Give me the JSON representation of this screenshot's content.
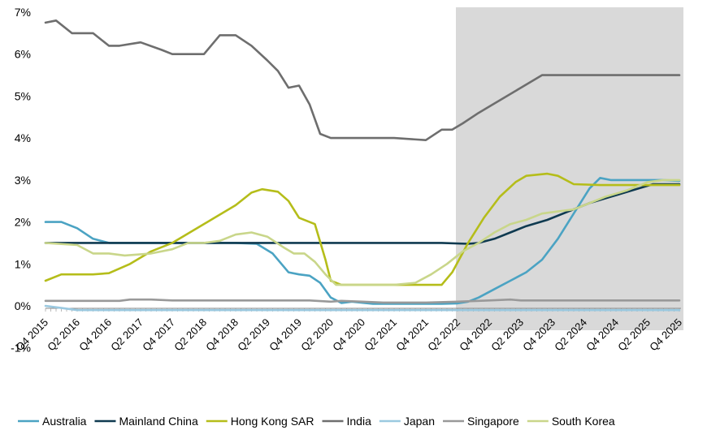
{
  "chart_data": {
    "type": "line",
    "title": "",
    "xlabel": "",
    "ylabel": "",
    "ylim": [
      -1,
      7
    ],
    "y_tick_labels": [
      "-1%",
      "0%",
      "1%",
      "2%",
      "3%",
      "4%",
      "5%",
      "6%",
      "7%"
    ],
    "x_tick_labels": [
      "Q4 2015",
      "Q2 2016",
      "Q4 2016",
      "Q2 2017",
      "Q4 2017",
      "Q2 2018",
      "Q4 2018",
      "Q2 2019",
      "Q4 2019",
      "Q2 2020",
      "Q4 2020",
      "Q2 2021",
      "Q4 2021",
      "Q2 2022",
      "Q4 2022",
      "Q2 2023",
      "Q4 2023",
      "Q2 2024",
      "Q4 2024",
      "Q2 2025",
      "Q4 2025"
    ],
    "x_tick_months": [
      0,
      6,
      12,
      18,
      24,
      30,
      36,
      42,
      48,
      54,
      60,
      66,
      72,
      78,
      84,
      90,
      96,
      102,
      108,
      114,
      120
    ],
    "shaded_region": {
      "from": "Q2 2022",
      "to": "Q4 2025",
      "color": "#d9d9d9"
    },
    "grid": false,
    "legend_position": "bottom",
    "series": [
      {
        "name": "Australia",
        "color": "#4ba3c3",
        "points": [
          [
            0,
            2.0
          ],
          [
            3,
            2.0
          ],
          [
            6,
            1.85
          ],
          [
            9,
            1.6
          ],
          [
            12,
            1.5
          ],
          [
            24,
            1.5
          ],
          [
            36,
            1.5
          ],
          [
            40,
            1.48
          ],
          [
            43,
            1.25
          ],
          [
            46,
            0.8
          ],
          [
            48,
            0.75
          ],
          [
            50,
            0.72
          ],
          [
            52,
            0.55
          ],
          [
            54,
            0.2
          ],
          [
            56,
            0.07
          ],
          [
            58,
            0.1
          ],
          [
            62,
            0.05
          ],
          [
            75,
            0.05
          ],
          [
            78,
            0.06
          ],
          [
            80,
            0.1
          ],
          [
            82,
            0.2
          ],
          [
            85,
            0.4
          ],
          [
            88,
            0.6
          ],
          [
            91,
            0.8
          ],
          [
            94,
            1.1
          ],
          [
            97,
            1.6
          ],
          [
            100,
            2.2
          ],
          [
            103,
            2.8
          ],
          [
            105,
            3.05
          ],
          [
            107,
            3.0
          ],
          [
            110,
            3.0
          ],
          [
            117,
            3.0
          ],
          [
            120,
            2.98
          ]
        ]
      },
      {
        "name": "Mainland China",
        "color": "#0f3a50",
        "points": [
          [
            0,
            1.5
          ],
          [
            30,
            1.5
          ],
          [
            60,
            1.5
          ],
          [
            75,
            1.5
          ],
          [
            80,
            1.48
          ],
          [
            82,
            1.5
          ],
          [
            85,
            1.6
          ],
          [
            88,
            1.75
          ],
          [
            91,
            1.9
          ],
          [
            95,
            2.05
          ],
          [
            99,
            2.25
          ],
          [
            103,
            2.45
          ],
          [
            107,
            2.6
          ],
          [
            111,
            2.75
          ],
          [
            115,
            2.9
          ],
          [
            120,
            2.9
          ]
        ]
      },
      {
        "name": "Hong Kong SAR",
        "color": "#b5bd1a",
        "points": [
          [
            0,
            0.6
          ],
          [
            3,
            0.75
          ],
          [
            9,
            0.75
          ],
          [
            12,
            0.78
          ],
          [
            16,
            1.0
          ],
          [
            20,
            1.3
          ],
          [
            24,
            1.5
          ],
          [
            28,
            1.8
          ],
          [
            32,
            2.1
          ],
          [
            36,
            2.4
          ],
          [
            39,
            2.7
          ],
          [
            41,
            2.78
          ],
          [
            44,
            2.72
          ],
          [
            46,
            2.5
          ],
          [
            48,
            2.1
          ],
          [
            51,
            1.95
          ],
          [
            53,
            1.1
          ],
          [
            54,
            0.6
          ],
          [
            56,
            0.5
          ],
          [
            72,
            0.5
          ],
          [
            75,
            0.5
          ],
          [
            77,
            0.8
          ],
          [
            80,
            1.5
          ],
          [
            83,
            2.1
          ],
          [
            86,
            2.6
          ],
          [
            89,
            2.95
          ],
          [
            91,
            3.1
          ],
          [
            95,
            3.15
          ],
          [
            97,
            3.1
          ],
          [
            100,
            2.9
          ],
          [
            105,
            2.88
          ],
          [
            110,
            2.88
          ],
          [
            115,
            2.88
          ],
          [
            120,
            2.88
          ]
        ]
      },
      {
        "name": "India",
        "color": "#6e6e6e",
        "points": [
          [
            0,
            6.75
          ],
          [
            2,
            6.8
          ],
          [
            5,
            6.5
          ],
          [
            7,
            6.5
          ],
          [
            9,
            6.5
          ],
          [
            12,
            6.2
          ],
          [
            14,
            6.2
          ],
          [
            18,
            6.28
          ],
          [
            22,
            6.1
          ],
          [
            24,
            6.0
          ],
          [
            28,
            6.0
          ],
          [
            30,
            6.0
          ],
          [
            33,
            6.45
          ],
          [
            36,
            6.45
          ],
          [
            39,
            6.2
          ],
          [
            42,
            5.85
          ],
          [
            44,
            5.6
          ],
          [
            46,
            5.2
          ],
          [
            48,
            5.25
          ],
          [
            50,
            4.8
          ],
          [
            52,
            4.1
          ],
          [
            54,
            4.0
          ],
          [
            60,
            4.0
          ],
          [
            66,
            4.0
          ],
          [
            72,
            3.95
          ],
          [
            75,
            4.2
          ],
          [
            77,
            4.2
          ],
          [
            79,
            4.35
          ],
          [
            82,
            4.6
          ],
          [
            86,
            4.9
          ],
          [
            90,
            5.2
          ],
          [
            94,
            5.5
          ],
          [
            96,
            5.5
          ],
          [
            100,
            5.5
          ],
          [
            105,
            5.5
          ],
          [
            110,
            5.5
          ],
          [
            115,
            5.5
          ],
          [
            120,
            5.5
          ]
        ]
      },
      {
        "name": "Japan",
        "color": "#9bc9e0",
        "points": [
          [
            0,
            0.0
          ],
          [
            3,
            -0.05
          ],
          [
            6,
            -0.1
          ],
          [
            12,
            -0.1
          ],
          [
            36,
            -0.1
          ],
          [
            60,
            -0.1
          ],
          [
            84,
            -0.1
          ],
          [
            100,
            -0.1
          ],
          [
            120,
            -0.1
          ]
        ]
      },
      {
        "name": "Singapore",
        "color": "#999999",
        "points": [
          [
            0,
            0.12
          ],
          [
            14,
            0.12
          ],
          [
            16,
            0.15
          ],
          [
            20,
            0.15
          ],
          [
            24,
            0.13
          ],
          [
            50,
            0.13
          ],
          [
            54,
            0.1
          ],
          [
            56,
            0.12
          ],
          [
            60,
            0.1
          ],
          [
            64,
            0.08
          ],
          [
            72,
            0.08
          ],
          [
            78,
            0.1
          ],
          [
            84,
            0.13
          ],
          [
            88,
            0.15
          ],
          [
            90,
            0.13
          ],
          [
            100,
            0.13
          ],
          [
            120,
            0.13
          ]
        ]
      },
      {
        "name": "South Korea",
        "color": "#c9d68a",
        "points": [
          [
            0,
            1.5
          ],
          [
            6,
            1.45
          ],
          [
            9,
            1.25
          ],
          [
            12,
            1.25
          ],
          [
            15,
            1.2
          ],
          [
            20,
            1.25
          ],
          [
            24,
            1.35
          ],
          [
            27,
            1.5
          ],
          [
            30,
            1.5
          ],
          [
            33,
            1.55
          ],
          [
            36,
            1.7
          ],
          [
            39,
            1.75
          ],
          [
            42,
            1.65
          ],
          [
            45,
            1.4
          ],
          [
            47,
            1.25
          ],
          [
            49,
            1.25
          ],
          [
            51,
            1.05
          ],
          [
            53,
            0.75
          ],
          [
            55,
            0.5
          ],
          [
            60,
            0.5
          ],
          [
            66,
            0.5
          ],
          [
            70,
            0.55
          ],
          [
            73,
            0.75
          ],
          [
            76,
            1.0
          ],
          [
            79,
            1.3
          ],
          [
            82,
            1.5
          ],
          [
            85,
            1.75
          ],
          [
            88,
            1.95
          ],
          [
            91,
            2.05
          ],
          [
            94,
            2.2
          ],
          [
            97,
            2.25
          ],
          [
            100,
            2.3
          ],
          [
            103,
            2.45
          ],
          [
            106,
            2.6
          ],
          [
            110,
            2.75
          ],
          [
            114,
            2.95
          ],
          [
            117,
            3.0
          ],
          [
            120,
            3.0
          ]
        ]
      }
    ]
  }
}
